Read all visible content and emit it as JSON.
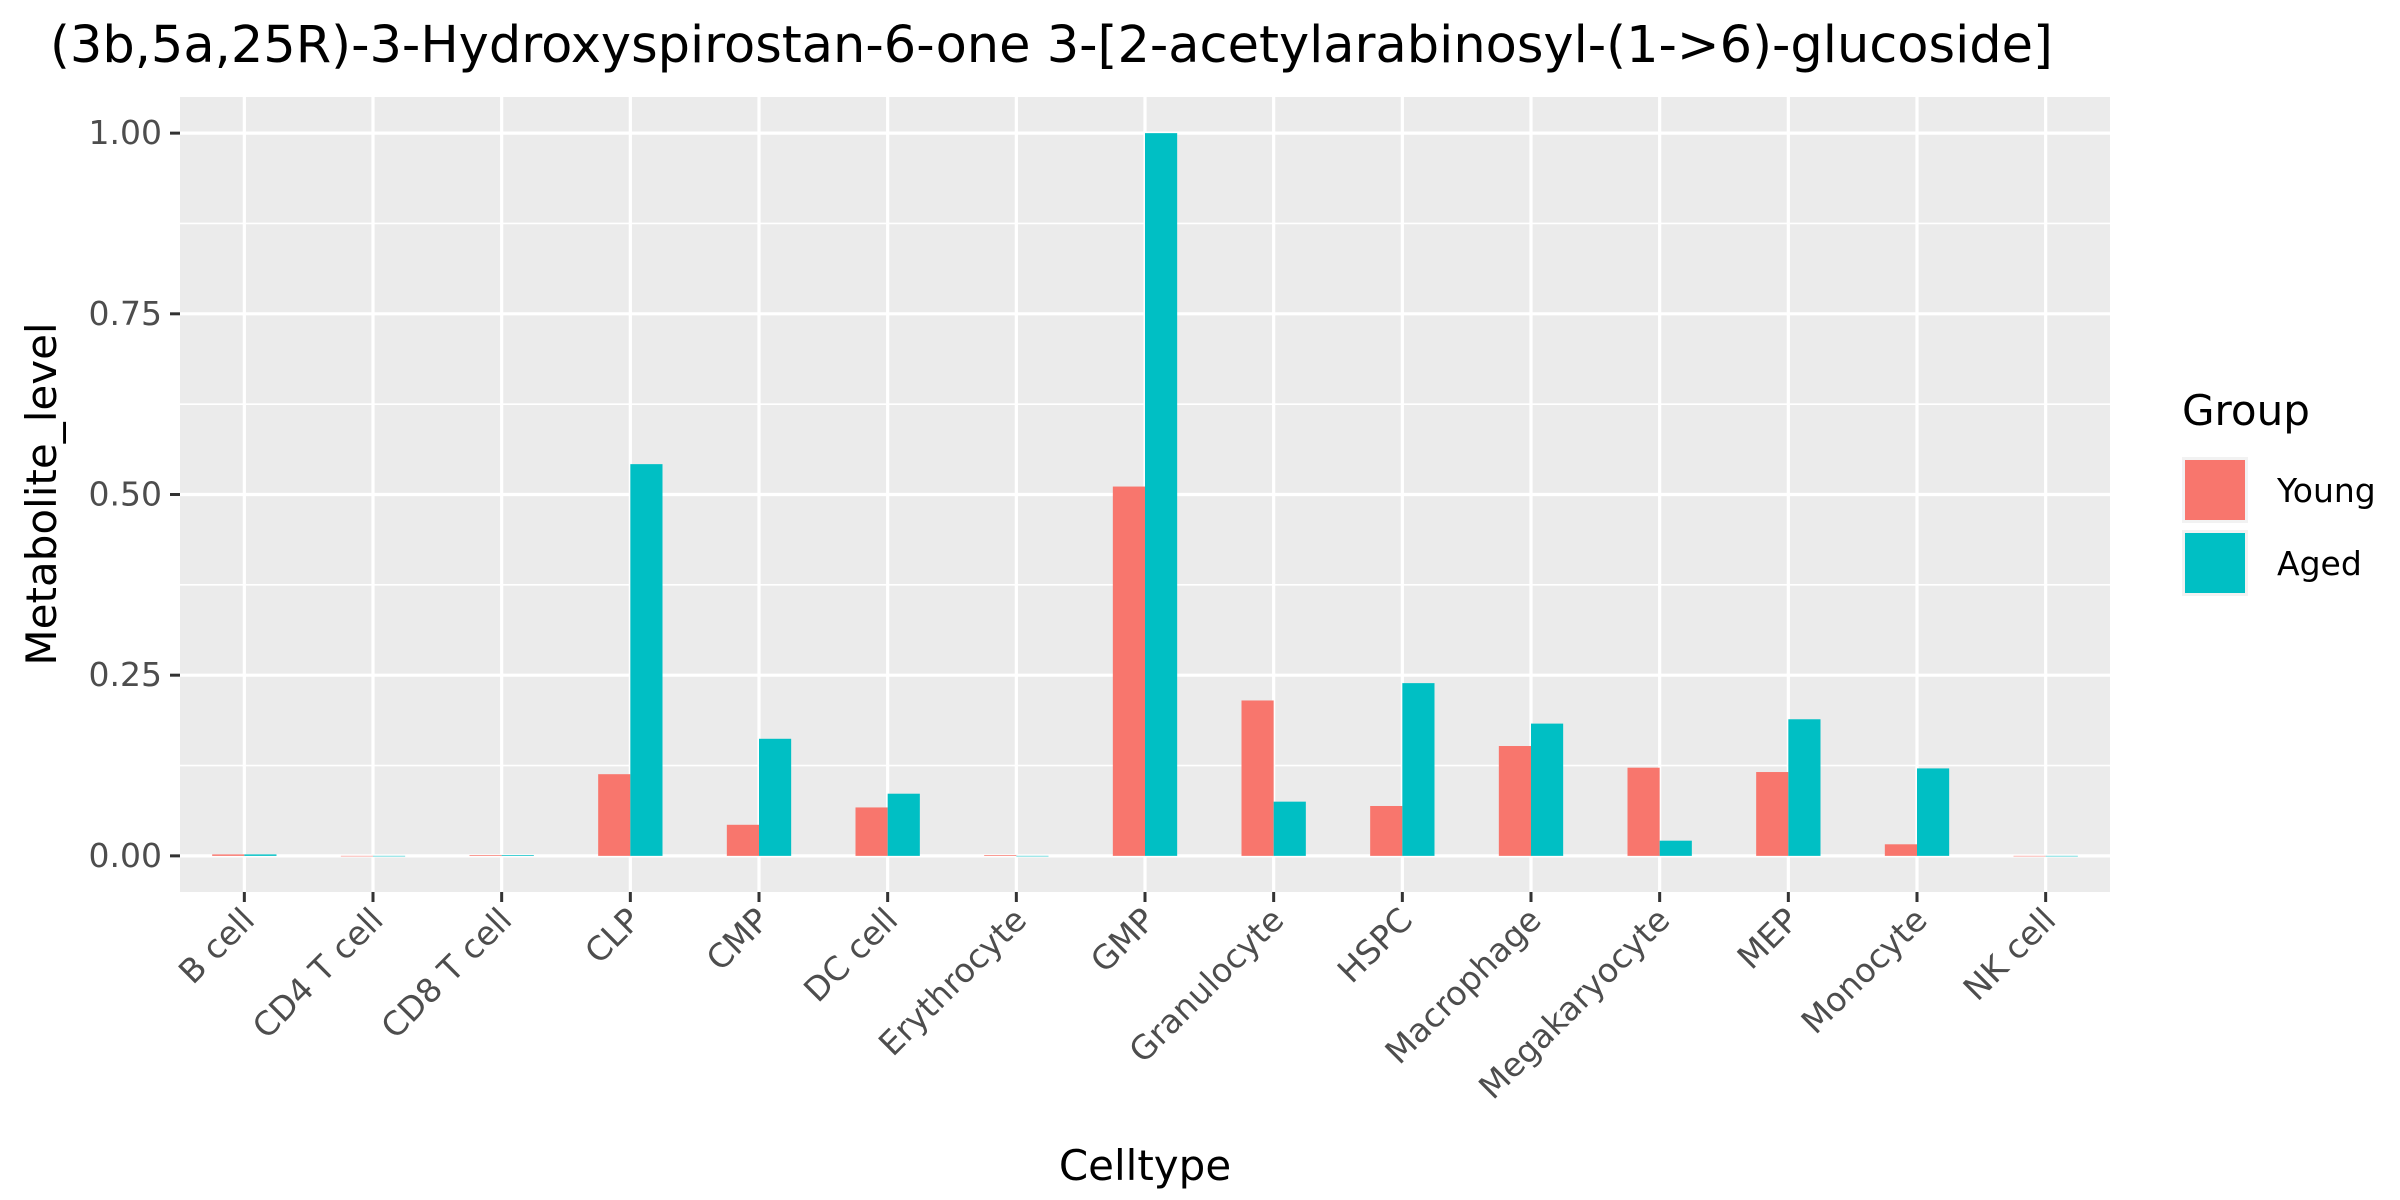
{
  "chart_data": {
    "type": "bar",
    "title": "(3b,5a,25R)-3-Hydroxyspirostan-6-one 3-[2-acetylarabinosyl-(1->6)-glucoside]",
    "xlabel": "Celltype",
    "ylabel": "Metabolite_level",
    "ylim": [
      -0.05,
      1.05
    ],
    "yticks": [
      0.0,
      0.25,
      0.5,
      0.75,
      1.0
    ],
    "ytick_labels": [
      "0.00",
      "0.25",
      "0.50",
      "0.75",
      "1.00"
    ],
    "categories": [
      "B cell",
      "CD4 T cell",
      "CD8 T cell",
      "CLP",
      "CMP",
      "DC cell",
      "Erythrocyte",
      "GMP",
      "Granulocyte",
      "HSPC",
      "Macrophage",
      "Megakaryocyte",
      "MEP",
      "Monocyte",
      "NK cell"
    ],
    "series": [
      {
        "name": "Young",
        "color": "#F8766D",
        "values": [
          0.002,
          0.0,
          0.001,
          0.113,
          0.043,
          0.067,
          0.001,
          0.511,
          0.215,
          0.069,
          0.152,
          0.122,
          0.116,
          0.016,
          0.0
        ]
      },
      {
        "name": "Aged",
        "color": "#00BFC4",
        "values": [
          0.002,
          0.0,
          0.001,
          0.542,
          0.162,
          0.086,
          0.0,
          1.0,
          0.075,
          0.239,
          0.183,
          0.021,
          0.189,
          0.121,
          0.0
        ]
      }
    ],
    "grid": true,
    "panel_background": "#EBEBEB",
    "grid_color": "#FFFFFF",
    "legend": {
      "title": "Group",
      "position": "right"
    }
  }
}
